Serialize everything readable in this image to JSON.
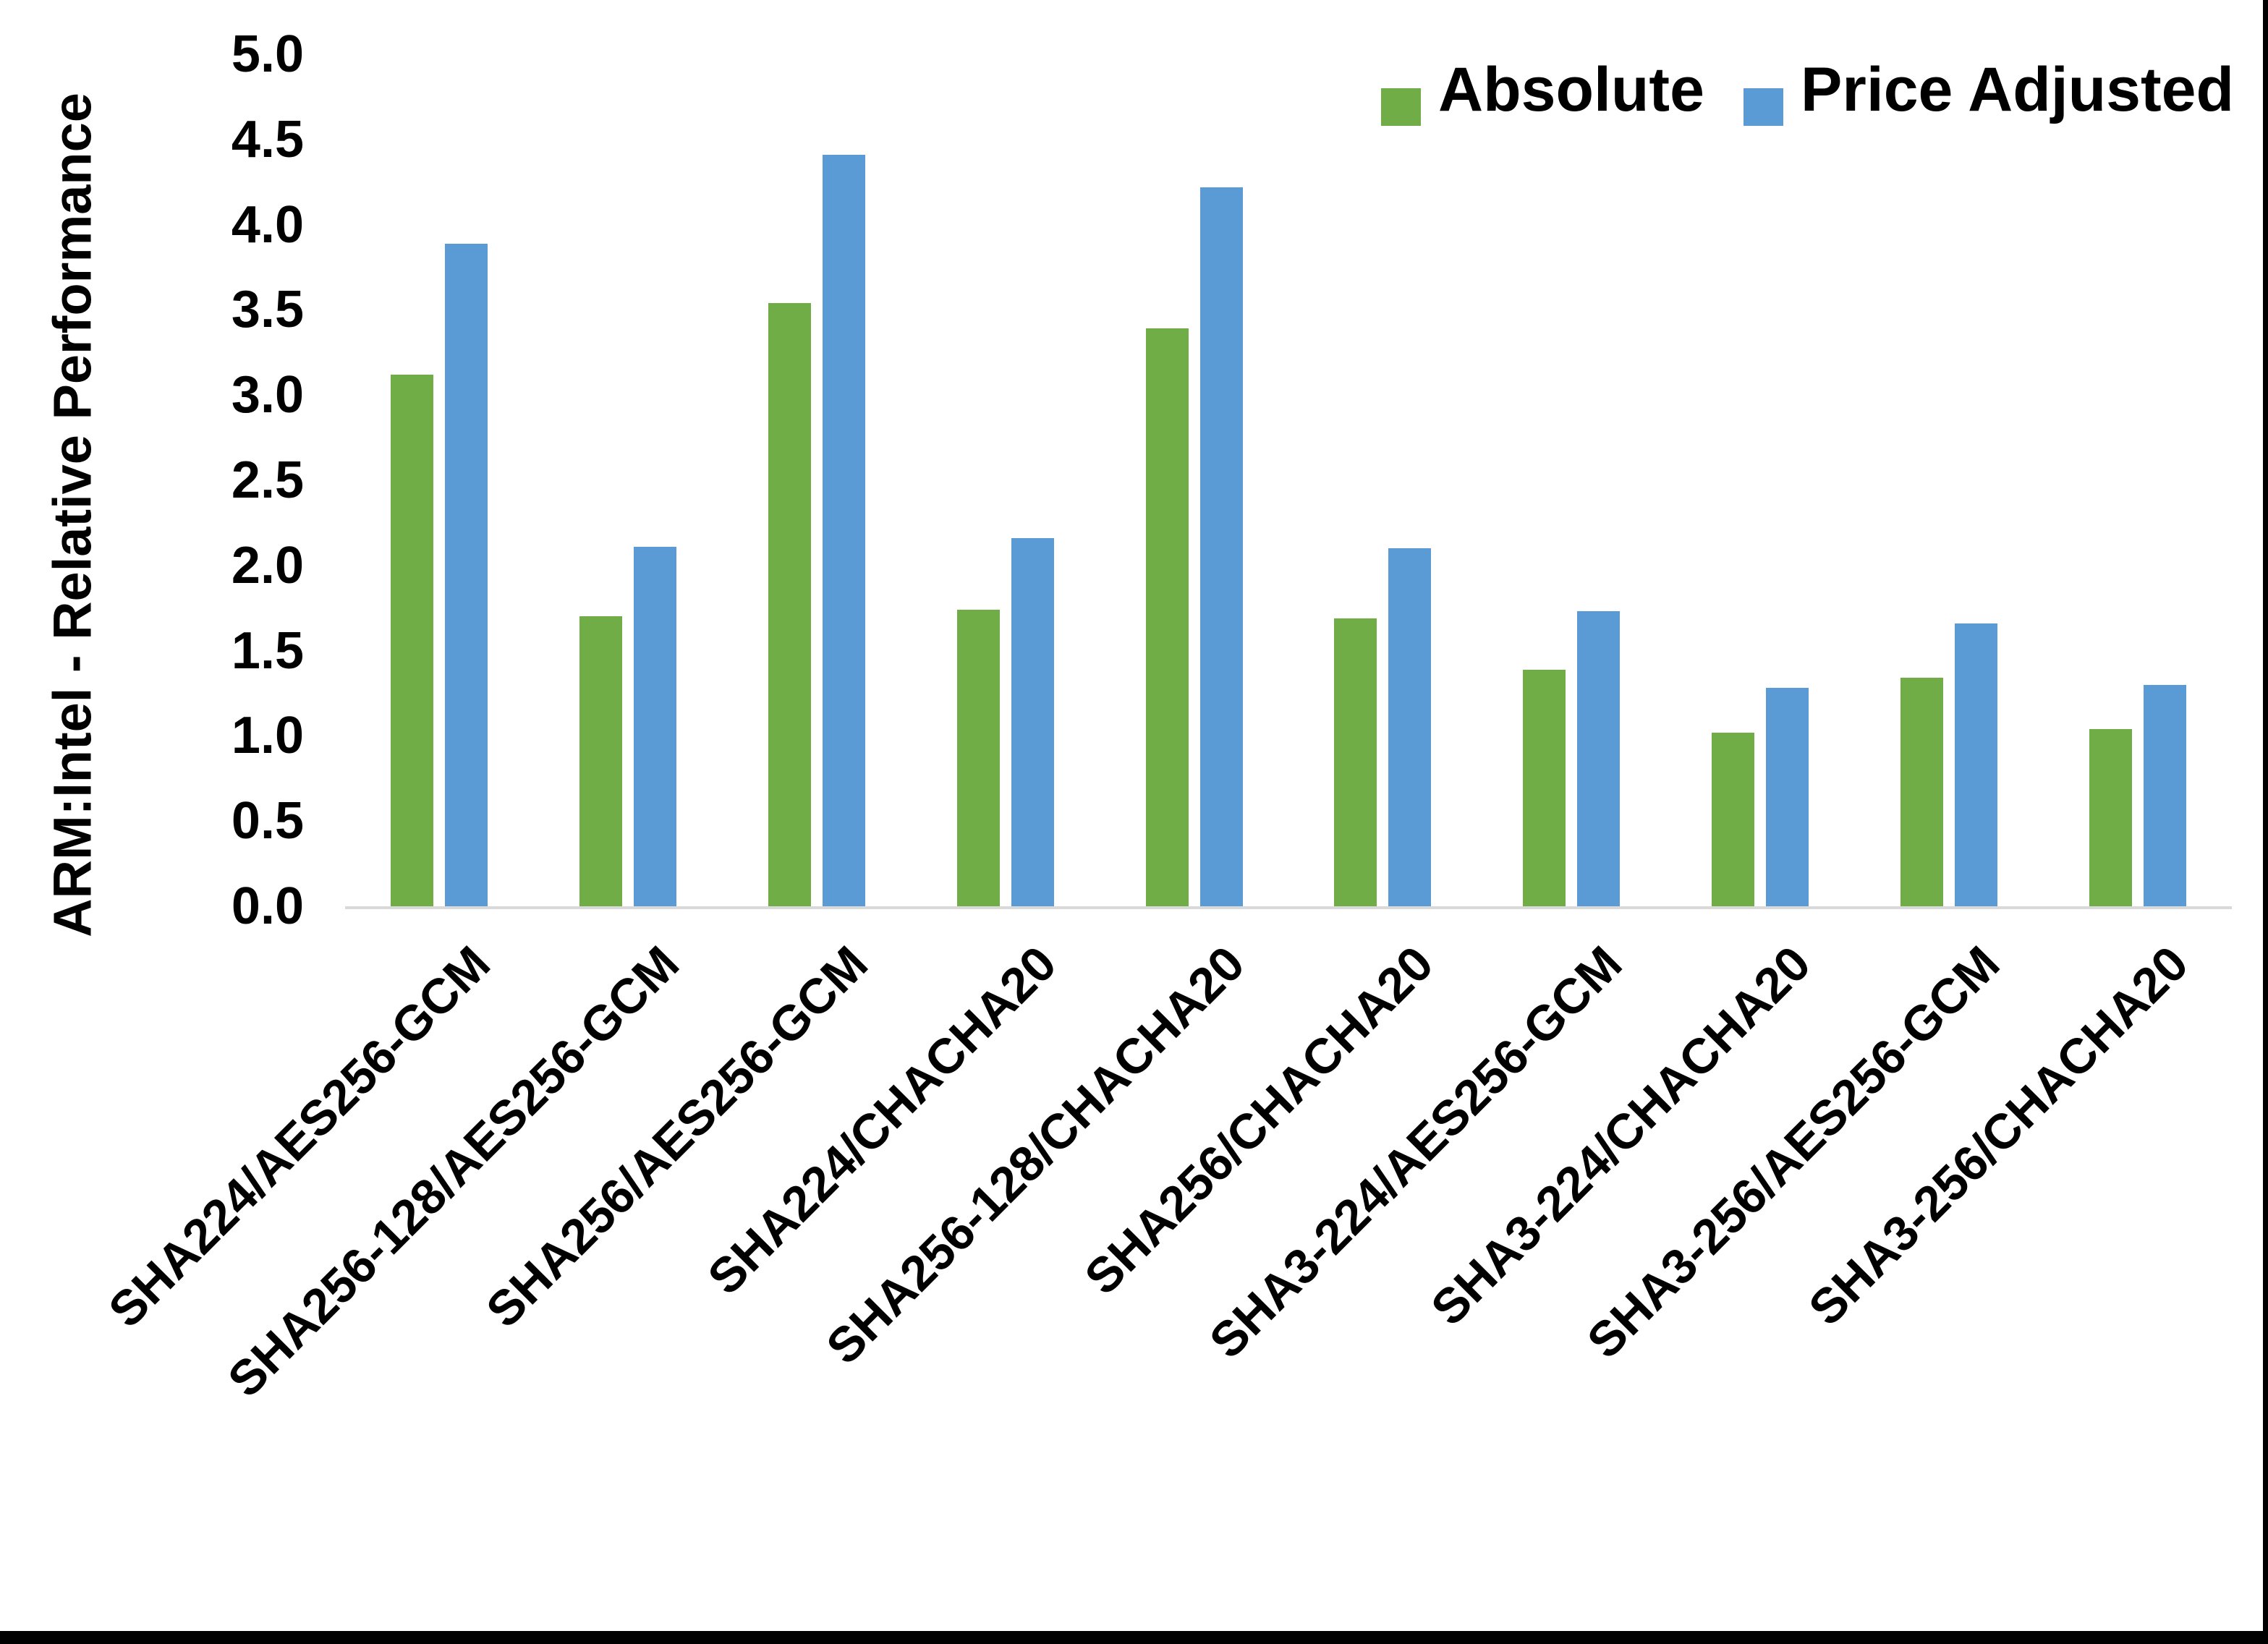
{
  "chart_data": {
    "type": "bar",
    "title": "",
    "xlabel": "",
    "ylabel": "ARM:Intel - Relative Performance",
    "ylim": [
      0.0,
      5.0
    ],
    "ytick_step": 0.5,
    "yticks": [
      "0.0",
      "0.5",
      "1.0",
      "1.5",
      "2.0",
      "2.5",
      "3.0",
      "3.5",
      "4.0",
      "4.5",
      "5.0"
    ],
    "grid": false,
    "legend_position": "top-right",
    "baseline_color": "#d9d9d9",
    "categories": [
      "SHA224/AES256-GCM",
      "SHA256-128/AES256-GCM",
      "SHA256/AES256-GCM",
      "SHA224/CHACHA20",
      "SHA256-128/CHACHA20",
      "SHA256/CHACHA20",
      "SHA3-224/AES256-GCM",
      "SHA3-224/CHACHA20",
      "SHA3-256/AES256-GCM",
      "SHA3-256/CHACHA20"
    ],
    "series": [
      {
        "name": "Absolute",
        "color": "#70ad47",
        "values": [
          3.12,
          1.7,
          3.54,
          1.74,
          3.39,
          1.69,
          1.39,
          1.02,
          1.34,
          1.04
        ]
      },
      {
        "name": "Price Adjusted",
        "color": "#5b9bd5",
        "values": [
          3.89,
          2.11,
          4.41,
          2.16,
          4.22,
          2.1,
          1.73,
          1.28,
          1.66,
          1.3
        ]
      }
    ]
  },
  "legend": {
    "absolute_label": "Absolute",
    "price_adjusted_label": "Price Adjusted"
  }
}
